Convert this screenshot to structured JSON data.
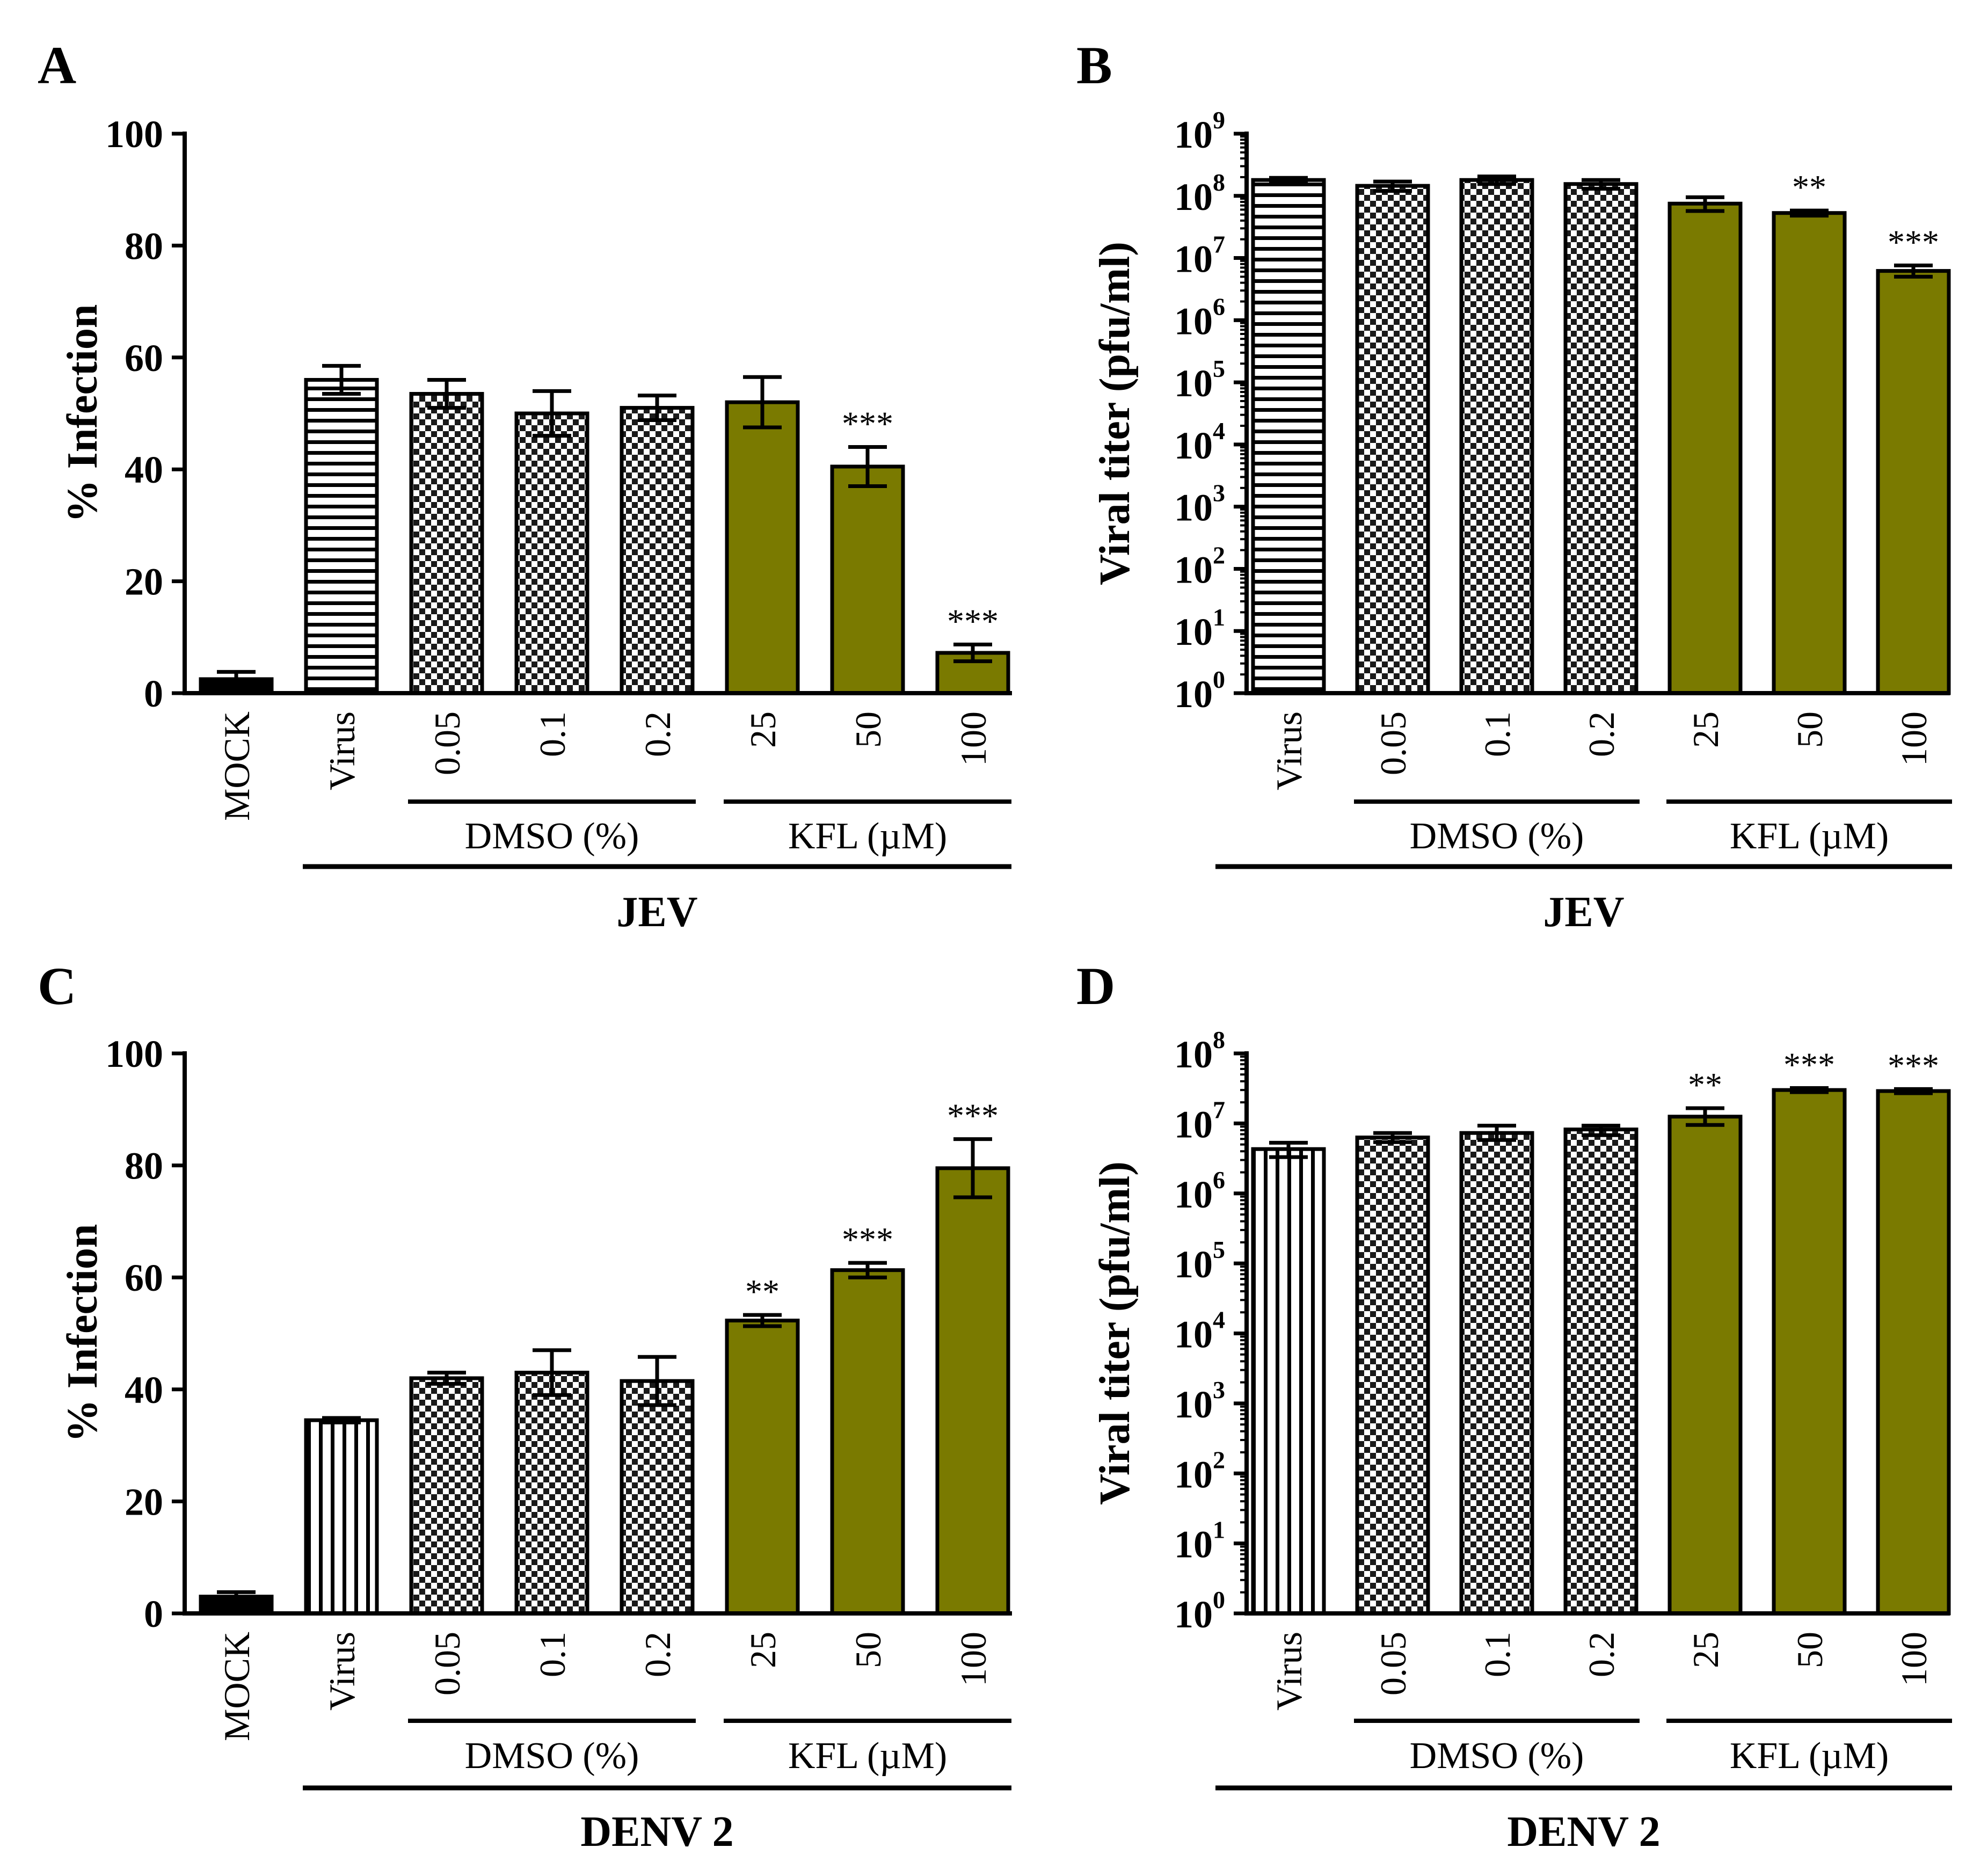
{
  "chart_data": [
    {
      "id": "A",
      "type": "bar",
      "panel_label": "A",
      "ylabel": "% Infection",
      "yscale": "linear",
      "ylim": [
        0,
        100
      ],
      "yticks": [
        0,
        20,
        40,
        60,
        80,
        100
      ],
      "ytick_labels": [
        "0",
        "20",
        "40",
        "60",
        "80",
        "100"
      ],
      "categories": [
        "MOCK",
        "Virus",
        "0.05",
        "0.1",
        "0.2",
        "25",
        "50",
        "100"
      ],
      "values": [
        2.5,
        56,
        53.5,
        50,
        51,
        52,
        40.5,
        7.2
      ],
      "errors": [
        1.3,
        2.5,
        2.5,
        4,
        2.2,
        4.5,
        3.5,
        1.5
      ],
      "fills": [
        "solid-black",
        "horizontal",
        "checker",
        "checker",
        "checker",
        "olive",
        "olive",
        "olive"
      ],
      "significance": [
        "",
        "",
        "",
        "",
        "",
        "",
        "***",
        "***"
      ],
      "groups": [
        {
          "label": "DMSO (%)",
          "from": 2,
          "to": 4
        },
        {
          "label": "KFL (µM)",
          "from": 5,
          "to": 7
        }
      ],
      "virus": {
        "label": "JEV",
        "from": 1,
        "to": 7
      }
    },
    {
      "id": "B",
      "type": "bar",
      "panel_label": "B",
      "ylabel": "Viral titer (pfu/ml)",
      "yscale": "log",
      "ylim": [
        1,
        1000000000
      ],
      "ytick_base": "10",
      "ytick_exponents": [
        "0",
        "1",
        "2",
        "3",
        "4",
        "5",
        "6",
        "7",
        "8",
        "9"
      ],
      "categories": [
        "Virus",
        "0.05",
        "0.1",
        "0.2",
        "25",
        "50",
        "100"
      ],
      "values": [
        180000000,
        145000000,
        180000000,
        155000000,
        75000000,
        53000000,
        6200000
      ],
      "errors_low": [
        168000000,
        120000000,
        155000000,
        130000000,
        57000000,
        48000000,
        5000000
      ],
      "errors_high": [
        195000000,
        170000000,
        205000000,
        180000000,
        95000000,
        58000000,
        7600000
      ],
      "fills": [
        "horizontal",
        "checker",
        "checker",
        "checker",
        "olive",
        "olive",
        "olive"
      ],
      "significance": [
        "",
        "",
        "",
        "",
        "",
        "**",
        "***"
      ],
      "groups": [
        {
          "label": "DMSO (%)",
          "from": 1,
          "to": 3
        },
        {
          "label": "KFL (µM)",
          "from": 4,
          "to": 6
        }
      ],
      "virus": {
        "label": "JEV",
        "from": 0,
        "to": 6
      }
    },
    {
      "id": "C",
      "type": "bar",
      "panel_label": "C",
      "ylabel": "% Infection",
      "yscale": "linear",
      "ylim": [
        0,
        100
      ],
      "yticks": [
        0,
        20,
        40,
        60,
        80,
        100
      ],
      "ytick_labels": [
        "0",
        "20",
        "40",
        "60",
        "80",
        "100"
      ],
      "categories": [
        "MOCK",
        "Virus",
        "0.05",
        "0.1",
        "0.2",
        "25",
        "50",
        "100"
      ],
      "values": [
        3,
        34.5,
        42,
        43,
        41.5,
        52.3,
        61.3,
        79.5
      ],
      "errors": [
        0.8,
        0.4,
        1,
        4,
        4.3,
        1,
        1.3,
        5.2
      ],
      "fills": [
        "solid-black",
        "vertical",
        "checker",
        "checker",
        "checker",
        "olive",
        "olive",
        "olive"
      ],
      "significance": [
        "",
        "",
        "",
        "",
        "",
        "**",
        "***",
        "***"
      ],
      "groups": [
        {
          "label": "DMSO (%)",
          "from": 2,
          "to": 4
        },
        {
          "label": "KFL (µM)",
          "from": 5,
          "to": 7
        }
      ],
      "virus": {
        "label": "DENV 2",
        "from": 1,
        "to": 7
      }
    },
    {
      "id": "D",
      "type": "bar",
      "panel_label": "D",
      "ylabel": "Viral titer (pfu/ml)",
      "yscale": "log",
      "ylim": [
        1,
        100000000
      ],
      "ytick_base": "10",
      "ytick_exponents": [
        "0",
        "1",
        "2",
        "3",
        "4",
        "5",
        "6",
        "7",
        "8"
      ],
      "categories": [
        "Virus",
        "0.05",
        "0.1",
        "0.2",
        "25",
        "50",
        "100"
      ],
      "values": [
        4300000,
        6300000,
        7300000,
        8200000,
        12500000,
        30000000,
        29000000
      ],
      "errors_low": [
        3300000,
        5400000,
        5800000,
        6800000,
        9500000,
        28000000,
        27000000
      ],
      "errors_high": [
        5300000,
        7300000,
        9300000,
        9300000,
        16500000,
        32000000,
        31000000
      ],
      "fills": [
        "vertical",
        "checker",
        "checker",
        "checker",
        "olive",
        "olive",
        "olive"
      ],
      "significance": [
        "",
        "",
        "",
        "",
        "**",
        "***",
        "***"
      ],
      "groups": [
        {
          "label": "DMSO (%)",
          "from": 1,
          "to": 3
        },
        {
          "label": "KFL (µM)",
          "from": 4,
          "to": 6
        }
      ],
      "virus": {
        "label": "DENV 2",
        "from": 0,
        "to": 6
      }
    }
  ]
}
